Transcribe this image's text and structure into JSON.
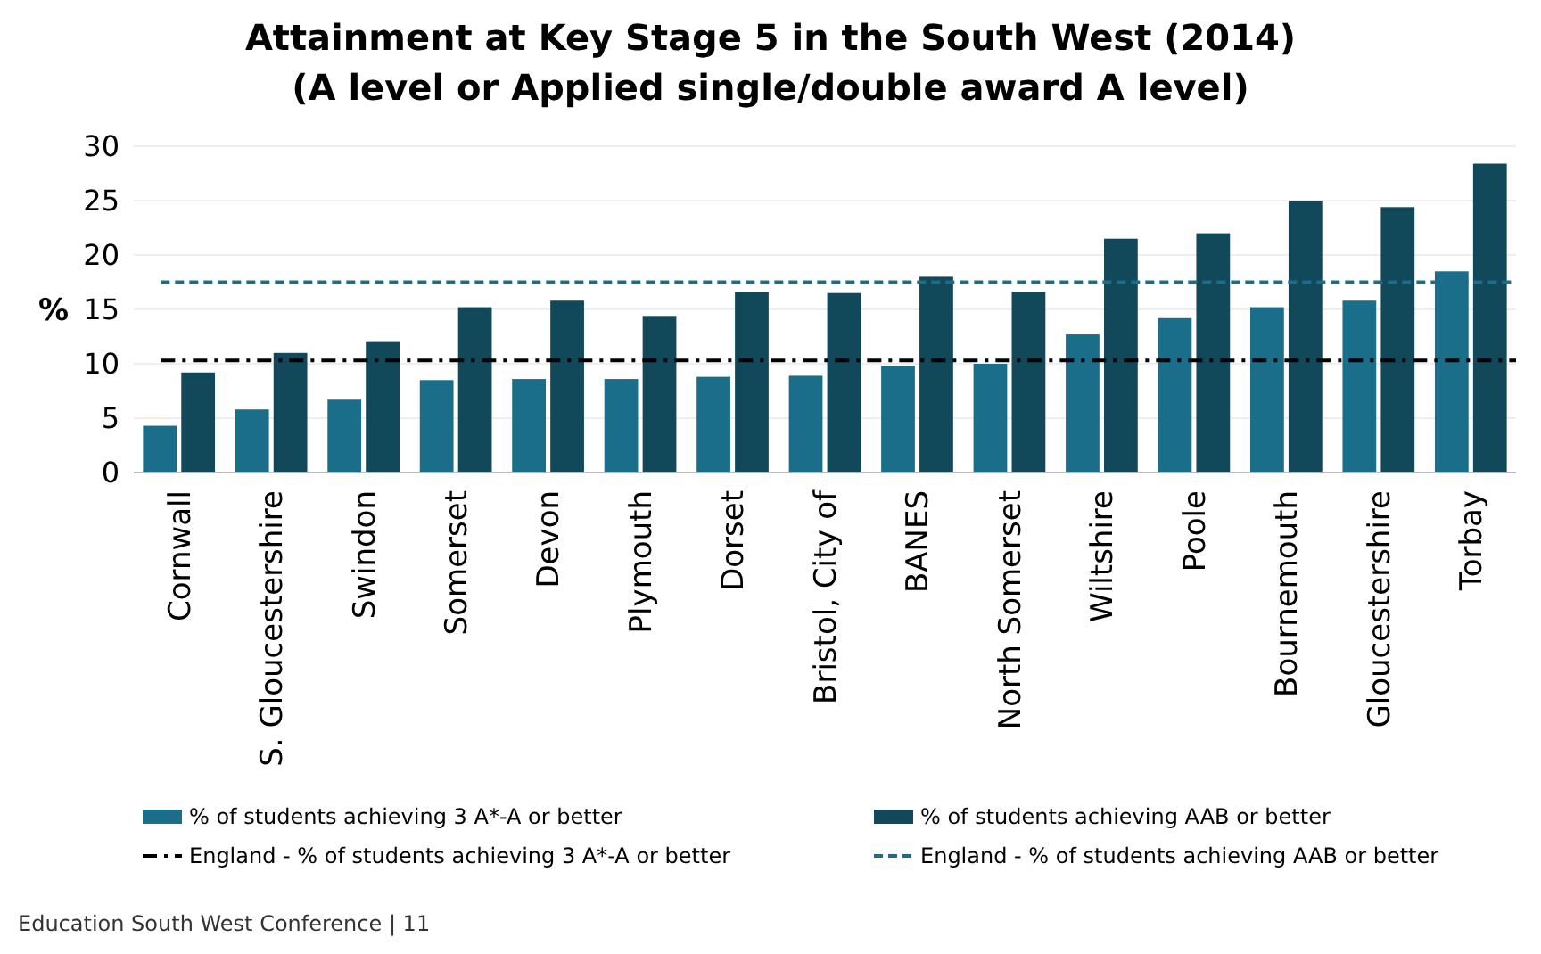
{
  "chart_data": {
    "type": "bar",
    "title": "Attainment at Key Stage 5 in the South West (2014)",
    "subtitle": "(A level or Applied single/double award A level)",
    "ylabel": "%",
    "categories": [
      "Cornwall",
      "S. Gloucestershire",
      "Swindon",
      "Somerset",
      "Devon",
      "Plymouth",
      "Dorset",
      "Bristol, City of",
      "BANES",
      "North Somerset",
      "Wiltshire",
      "Poole",
      "Bournemouth",
      "Gloucestershire",
      "Torbay"
    ],
    "series": [
      {
        "name": "% of students achieving 3 A*-A or better",
        "color": "#1a6e8a",
        "values": [
          4.3,
          5.8,
          6.7,
          8.5,
          8.6,
          8.6,
          8.8,
          8.9,
          9.8,
          10.0,
          12.7,
          14.2,
          15.2,
          15.8,
          18.5
        ]
      },
      {
        "name": "% of students achieving AAB or better",
        "color": "#12495a",
        "values": [
          9.2,
          11.0,
          12.0,
          15.2,
          15.8,
          14.4,
          16.6,
          16.5,
          18.0,
          16.6,
          21.5,
          22.0,
          25.0,
          24.4,
          28.4
        ]
      }
    ],
    "ref_lines": [
      {
        "axis": "y",
        "value": 10.3,
        "label": "England - % of students achieving 3 A*-A or better",
        "color": "#000000",
        "line_style": "dashdot"
      },
      {
        "axis": "y",
        "value": 17.5,
        "label": "England -  % of students achieving AAB or better",
        "color": "#1a6e8a",
        "line_style": "dashed"
      }
    ],
    "ylim": [
      0,
      30
    ],
    "yticks": [
      0,
      5,
      10,
      15,
      20,
      25,
      30
    ],
    "grid": "y",
    "legend": "bottom",
    "annotations": [
      "Education South West Conference | 11"
    ]
  }
}
